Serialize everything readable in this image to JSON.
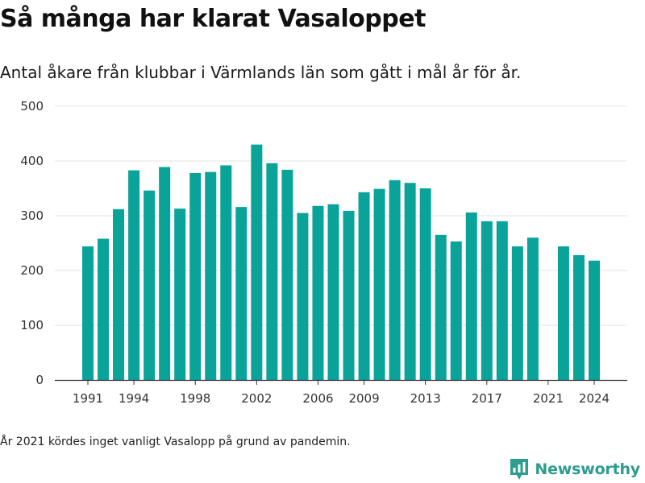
{
  "header": {
    "title": "Så många har klarat Vasaloppet",
    "subtitle": "Antal åkare från klubbar i Värmlands län som gått i mål år för år."
  },
  "footnote": "År 2021 kördes inget vanligt Vasalopp på grund av pandemin.",
  "brand": {
    "name": "Newsworthy",
    "icon": "newsworthy-logo-icon",
    "color": "#2e9c8e"
  },
  "colors": {
    "bar": "#0aa39a",
    "grid": "#e3e3e3",
    "axis": "#333333"
  },
  "chart_data": {
    "type": "bar",
    "title": "",
    "xlabel": "",
    "ylabel": "",
    "ylim": [
      0,
      500
    ],
    "yticks": [
      0,
      100,
      200,
      300,
      400,
      500
    ],
    "xticks": [
      1991,
      1994,
      1998,
      2002,
      2006,
      2009,
      2013,
      2017,
      2021,
      2024
    ],
    "grid": true,
    "categories": [
      1991,
      1992,
      1993,
      1994,
      1995,
      1996,
      1997,
      1998,
      1999,
      2000,
      2001,
      2002,
      2003,
      2004,
      2005,
      2006,
      2007,
      2008,
      2009,
      2010,
      2011,
      2012,
      2013,
      2014,
      2015,
      2016,
      2017,
      2018,
      2019,
      2020,
      2021,
      2022,
      2023,
      2024
    ],
    "values": [
      244,
      258,
      312,
      383,
      346,
      389,
      313,
      378,
      380,
      392,
      316,
      430,
      396,
      384,
      305,
      318,
      321,
      309,
      343,
      349,
      365,
      360,
      350,
      265,
      253,
      306,
      290,
      290,
      244,
      260,
      null,
      244,
      228,
      218
    ]
  }
}
